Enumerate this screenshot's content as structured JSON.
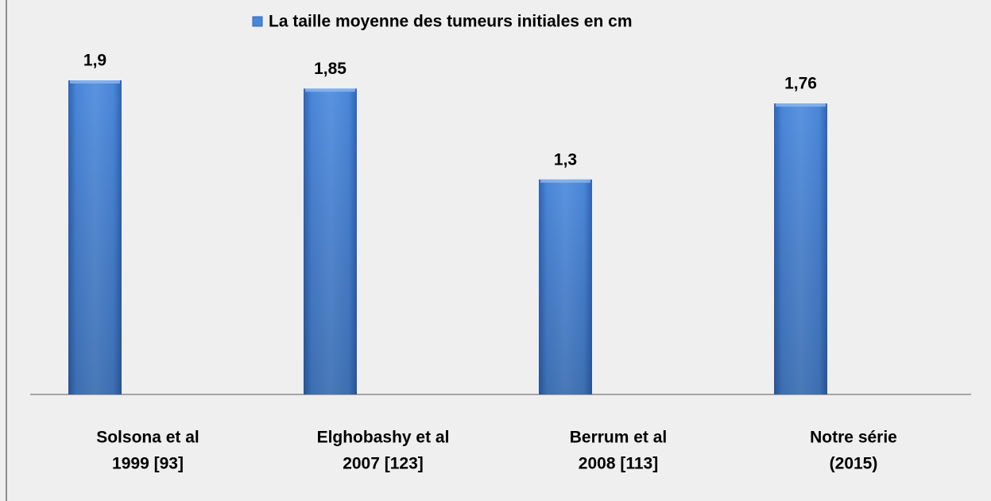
{
  "chart_data": {
    "type": "bar",
    "categories": [
      [
        "Solsona et al",
        "1999 [93]"
      ],
      [
        "Elghobashy et al",
        "2007 [123]"
      ],
      [
        "Berrum et al",
        "2008 [113]"
      ],
      [
        "Notre série",
        "(2015)"
      ]
    ],
    "series": [
      {
        "name": "La taille moyenne des tumeurs initiales en cm",
        "color": "#4a86d8",
        "values": [
          1.9,
          1.85,
          1.3,
          1.76
        ],
        "value_labels": [
          "1,9",
          "1,85",
          "1,3",
          "1,76"
        ]
      }
    ],
    "legend": "top"
  }
}
